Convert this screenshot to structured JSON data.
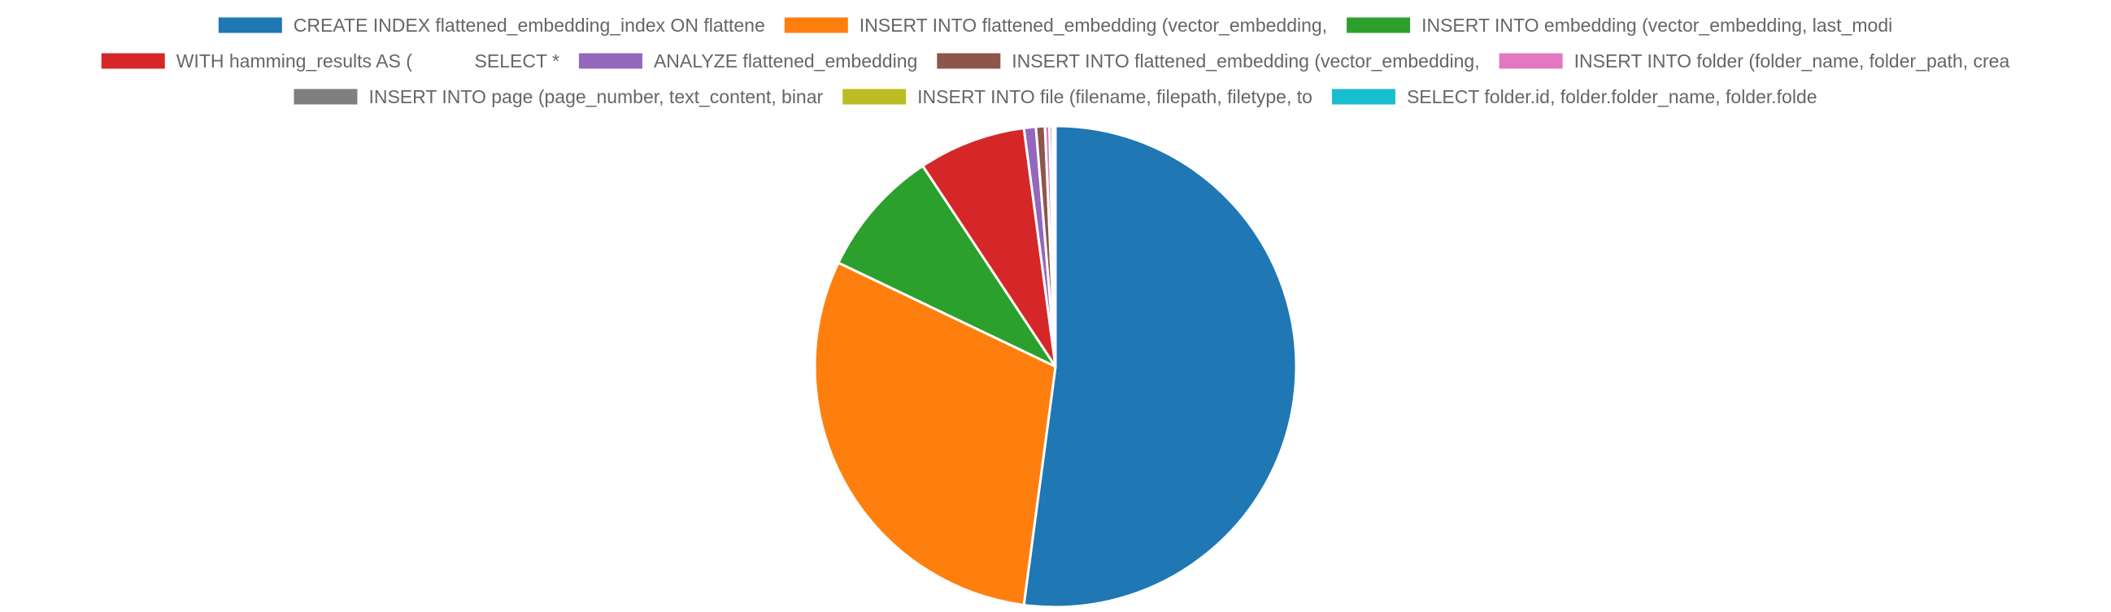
{
  "chart_data": {
    "type": "pie",
    "legend_position": "top",
    "series": [
      {
        "name": "CREATE INDEX flattened_embedding_index ON flattene",
        "value": 52.1,
        "color": "#1f77b4"
      },
      {
        "name": "INSERT INTO flattened_embedding (vector_embedding,",
        "value": 30.0,
        "color": "#ff7f0e"
      },
      {
        "name": "INSERT INTO embedding (vector_embedding, last_modi",
        "value": 8.6,
        "color": "#2ca02c"
      },
      {
        "name": "WITH hamming_results AS (            SELECT *",
        "value": 7.2,
        "color": "#d62728"
      },
      {
        "name": "ANALYZE flattened_embedding",
        "value": 0.8,
        "color": "#9467bd"
      },
      {
        "name": "INSERT INTO flattened_embedding (vector_embedding,",
        "value": 0.6,
        "color": "#8c564b"
      },
      {
        "name": "INSERT INTO folder (folder_name, folder_path, crea",
        "value": 0.3,
        "color": "#e377c2"
      },
      {
        "name": "INSERT INTO page (page_number, text_content, binar",
        "value": 0.2,
        "color": "#7f7f7f"
      },
      {
        "name": "INSERT INTO file (filename, filepath, filetype, to",
        "value": 0.1,
        "color": "#bcbd22"
      },
      {
        "name": "SELECT folder.id, folder.folder_name, folder.folde",
        "value": 0.1,
        "color": "#17becf"
      }
    ]
  }
}
